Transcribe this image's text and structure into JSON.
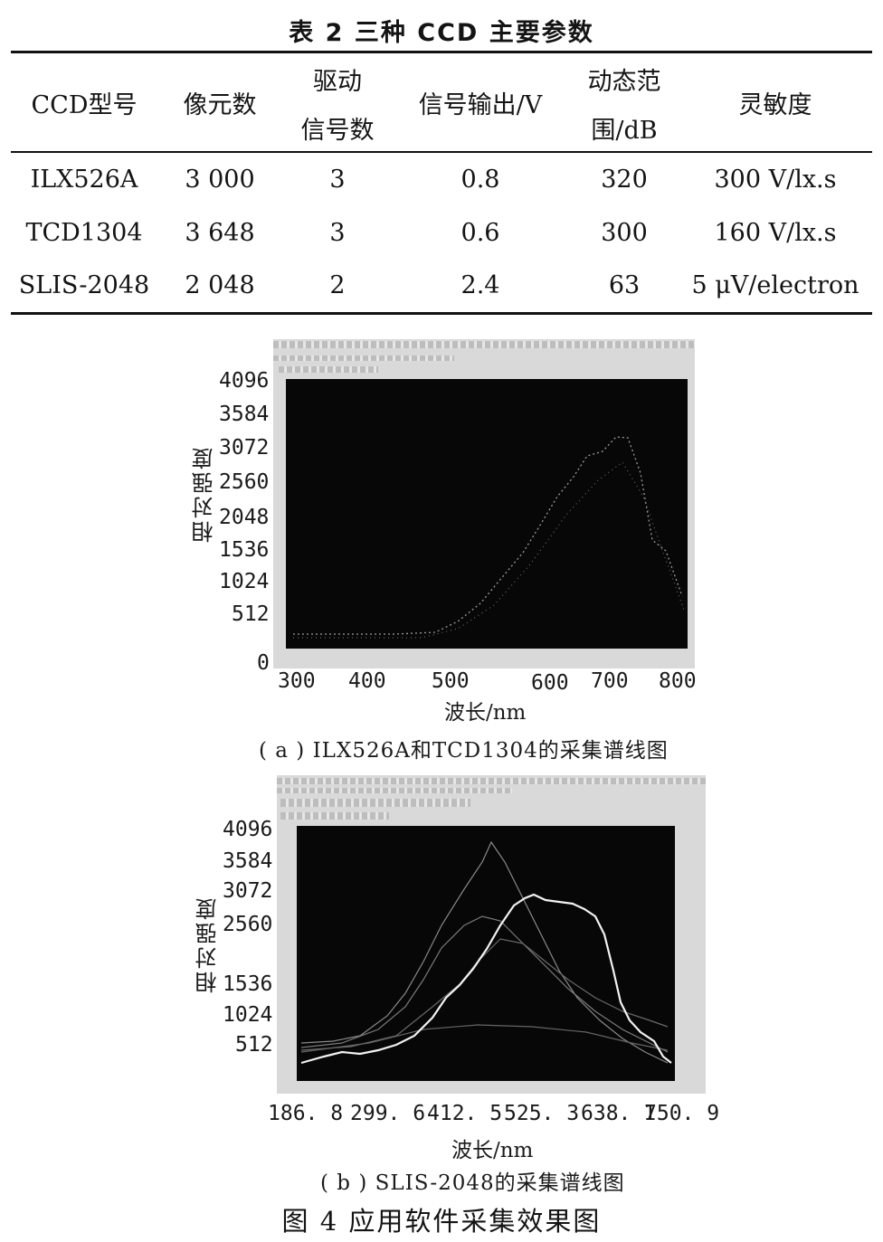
{
  "table": {
    "caption": "表 2   三种 CCD 主要参数",
    "headers": [
      [
        "CCD型号"
      ],
      [
        "像元数"
      ],
      [
        "驱动",
        "信号数"
      ],
      [
        "信号输出/V"
      ],
      [
        "动态范",
        "围/dB"
      ],
      [
        "灵敏度"
      ]
    ],
    "rows": [
      [
        "ILX526A",
        "3 000",
        "3",
        "0.8",
        "320",
        "300 V/lx.s"
      ],
      [
        "TCD1304",
        "3 648",
        "3",
        "0.6",
        "300",
        "160 V/lx.s"
      ],
      [
        "SLIS-2048",
        "2 048",
        "2",
        "2.4",
        "63",
        "5 μV/electron"
      ]
    ]
  },
  "figure": {
    "caption": "图 4   应用软件采集效果图",
    "subfigures": [
      {
        "caption": "( a ) ILX526A和TCD1304的采集谱线图",
        "ylabel": "相对强度",
        "xlabel": "波长/nm",
        "yticks": [
          "4096",
          "3584",
          "3072",
          "2560",
          "2048",
          "1536",
          "1024",
          "512",
          "0"
        ],
        "xticks": [
          "300",
          "400",
          "500",
          "600",
          "700",
          "800"
        ]
      },
      {
        "caption": "( b ) SLIS-2048的采集谱线图",
        "ylabel": "相对强度",
        "xlabel": "波长/nm",
        "yticks": [
          "4096",
          "3584",
          "3072",
          "2560",
          "1536",
          "1024",
          "512"
        ],
        "xticks": [
          "186. 8",
          "299. 6",
          "412. 5",
          "525. 3",
          "638. 1",
          "750. 9"
        ]
      }
    ]
  }
}
